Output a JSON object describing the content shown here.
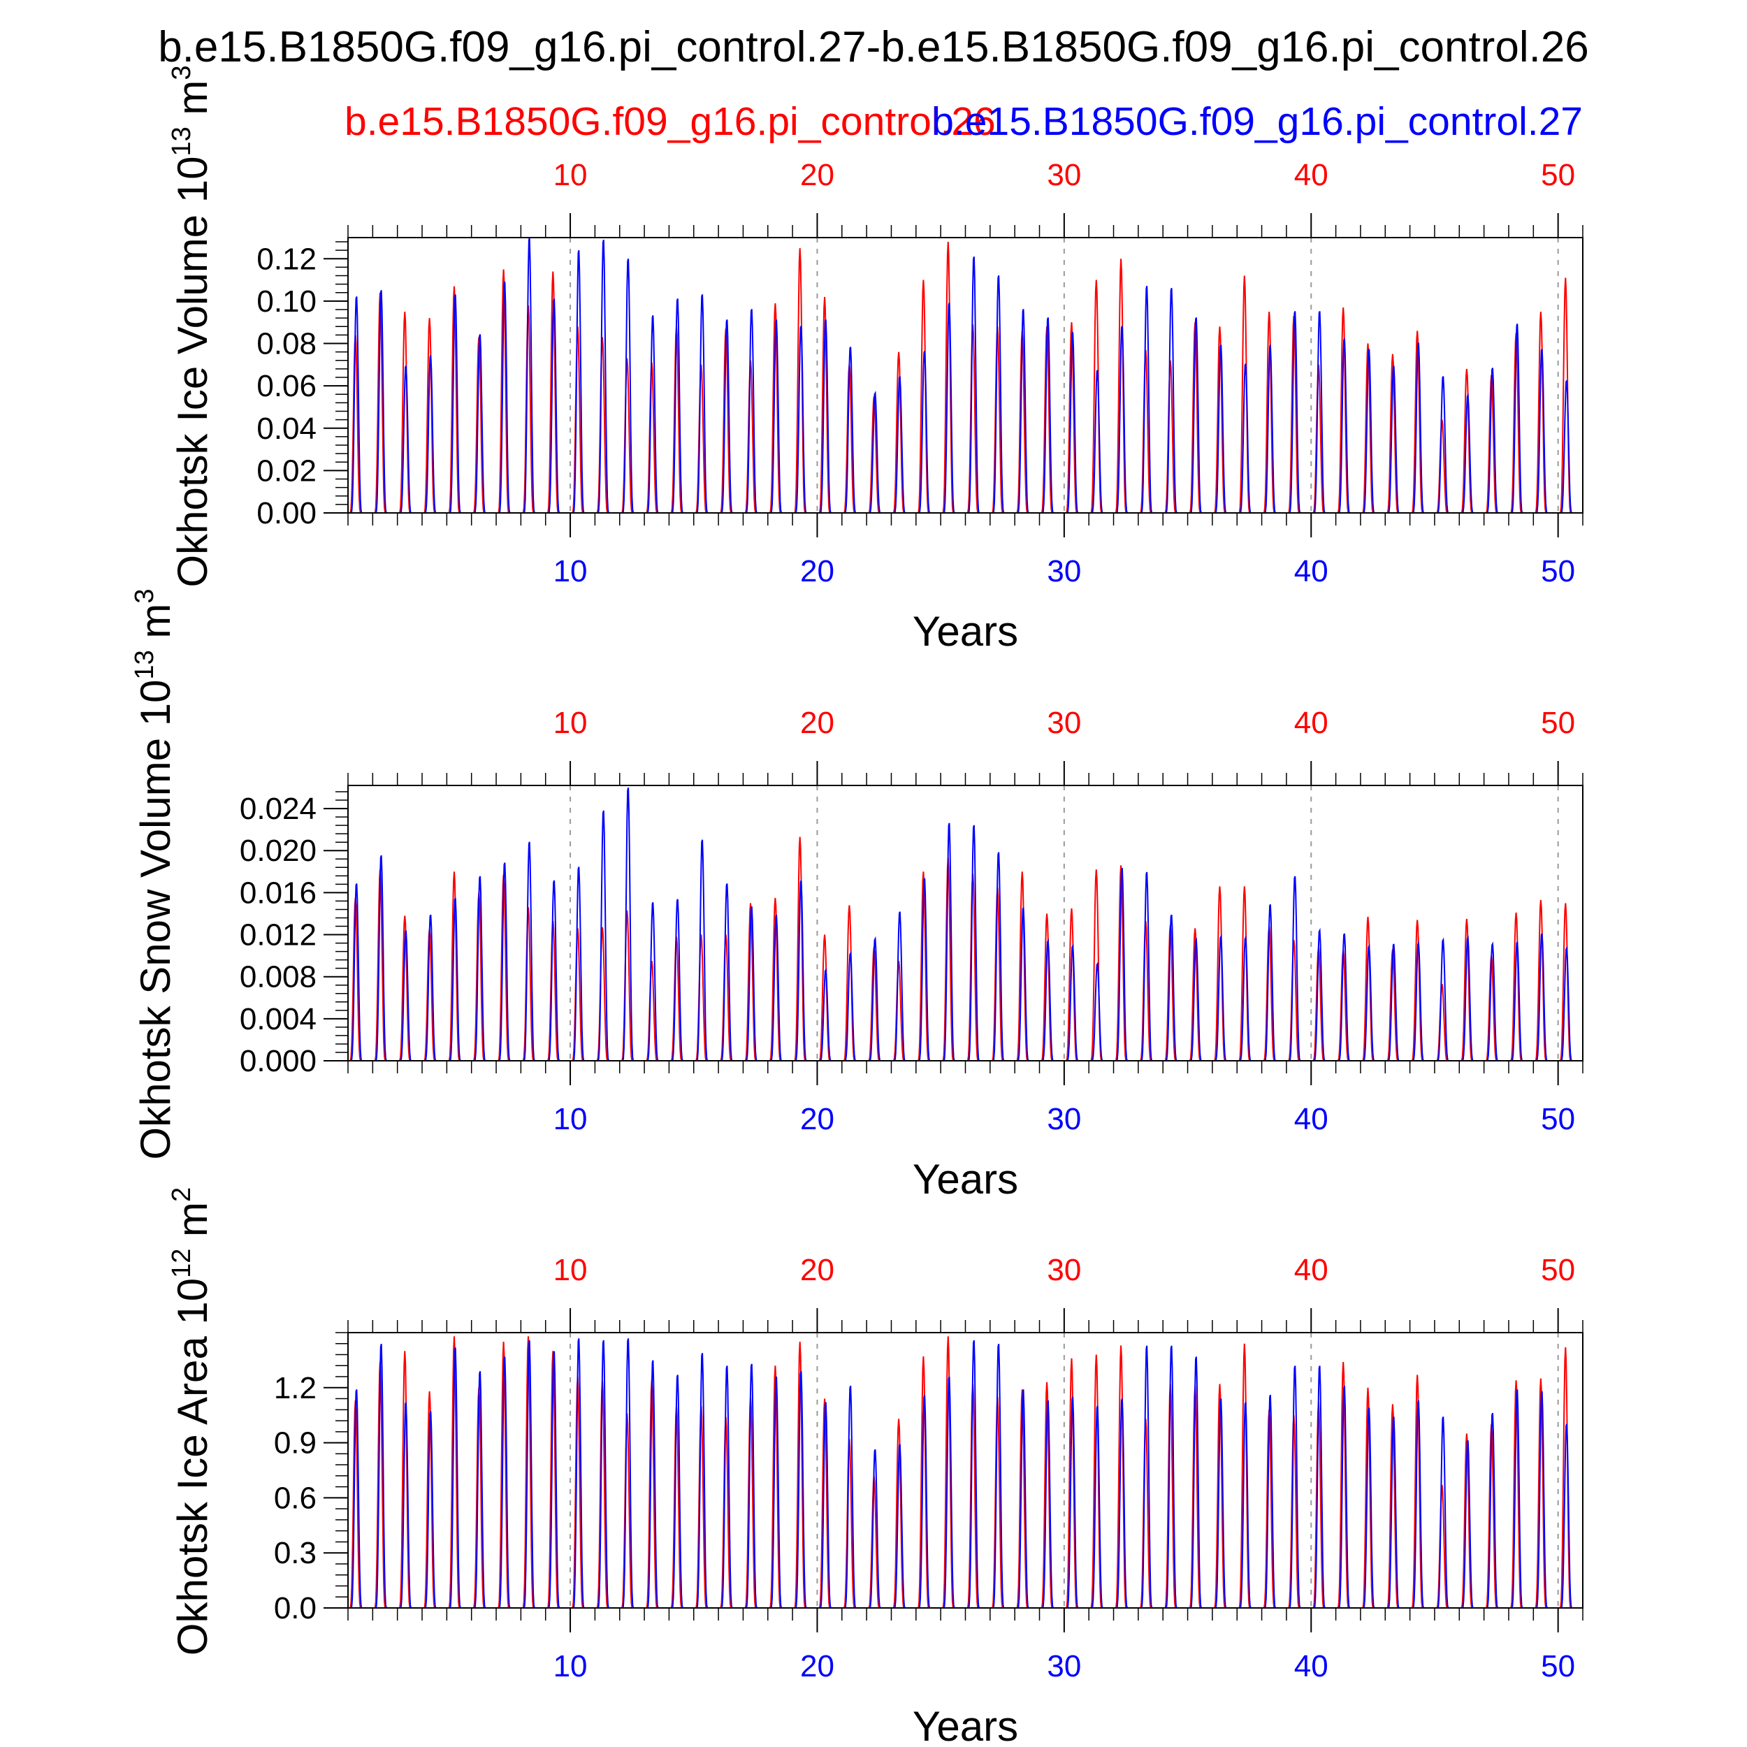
{
  "figure": {
    "title": "b.e15.B1850G.f09_g16.pi_control.27-b.e15.B1850G.f09_g16.pi_control.26",
    "legend_red": "b.e15.B1850G.f09_g16.pi_control.26",
    "legend_blue": "b.e15.B1850G.f09_g16.pi_control.27",
    "series_colors": {
      "red": "#ff0000",
      "blue": "#0000ff"
    }
  },
  "chart_data": [
    {
      "type": "line",
      "ylabel": "Okhotsk Ice Volume 10",
      "ylabel_exp": "13",
      "ylabel_unit": " m",
      "ylabel_unit_exp": "3",
      "xlabel": "Years",
      "xlim": [
        1,
        51
      ],
      "ylim": [
        0,
        0.13
      ],
      "yticks": [
        0,
        0.02,
        0.04,
        0.06,
        0.08,
        0.1,
        0.12
      ],
      "ytick_labels": [
        "0.00",
        "0.02",
        "0.04",
        "0.06",
        "0.08",
        "0.10",
        "0.12"
      ],
      "xticks": [
        10,
        20,
        30,
        40,
        50
      ],
      "xtick_labels": [
        "10",
        "20",
        "30",
        "40",
        "50"
      ],
      "peak_years": [
        1,
        2,
        3,
        4,
        5,
        6,
        7,
        8,
        9,
        10,
        11,
        12,
        13,
        14,
        15,
        16,
        17,
        18,
        19,
        20,
        21,
        22,
        23,
        24,
        25,
        26,
        27,
        28,
        29,
        30,
        31,
        32,
        33,
        34,
        35,
        36,
        37,
        38,
        39,
        40,
        41,
        42,
        43,
        44,
        45,
        46,
        47,
        48,
        49,
        50
      ],
      "series": [
        {
          "name": "b.e15.B1850G.f09_g16.pi_control.26",
          "color": "red",
          "annual_peaks": [
            0.084,
            0.104,
            0.095,
            0.092,
            0.107,
            0.083,
            0.115,
            0.098,
            0.114,
            0.088,
            0.083,
            0.073,
            0.071,
            0.088,
            0.07,
            0.087,
            0.072,
            0.099,
            0.125,
            0.102,
            0.07,
            0.055,
            0.076,
            0.11,
            0.128,
            0.089,
            0.088,
            0.086,
            0.088,
            0.09,
            0.11,
            0.12,
            0.077,
            0.072,
            0.09,
            0.088,
            0.112,
            0.095,
            0.093,
            0.07,
            0.097,
            0.08,
            0.075,
            0.086,
            0.044,
            0.068,
            0.065,
            0.085,
            0.095,
            0.111
          ]
        },
        {
          "name": "b.e15.B1850G.f09_g16.pi_control.27",
          "color": "blue",
          "annual_peaks": [
            0.103,
            0.106,
            0.07,
            0.075,
            0.104,
            0.085,
            0.11,
            0.131,
            0.102,
            0.125,
            0.13,
            0.121,
            0.094,
            0.102,
            0.104,
            0.092,
            0.097,
            0.092,
            0.089,
            0.092,
            0.079,
            0.057,
            0.065,
            0.077,
            0.1,
            0.122,
            0.113,
            0.097,
            0.093,
            0.086,
            0.068,
            0.089,
            0.108,
            0.107,
            0.093,
            0.08,
            0.071,
            0.08,
            0.096,
            0.096,
            0.083,
            0.078,
            0.07,
            0.081,
            0.065,
            0.056,
            0.069,
            0.09,
            0.078,
            0.063
          ]
        }
      ]
    },
    {
      "type": "line",
      "ylabel": "Okhotsk Snow Volume 10",
      "ylabel_exp": "13",
      "ylabel_unit": " m",
      "ylabel_unit_exp": "3",
      "xlabel": "Years",
      "xlim": [
        1,
        51
      ],
      "ylim": [
        0,
        0.0262
      ],
      "yticks": [
        0,
        0.004,
        0.008,
        0.012,
        0.016,
        0.02,
        0.024
      ],
      "ytick_labels": [
        "0.000",
        "0.004",
        "0.008",
        "0.012",
        "0.016",
        "0.020",
        "0.024"
      ],
      "xticks": [
        10,
        20,
        30,
        40,
        50
      ],
      "xtick_labels": [
        "10",
        "20",
        "30",
        "40",
        "50"
      ],
      "peak_years": [
        1,
        2,
        3,
        4,
        5,
        6,
        7,
        8,
        9,
        10,
        11,
        12,
        13,
        14,
        15,
        16,
        17,
        18,
        19,
        20,
        21,
        22,
        23,
        24,
        25,
        26,
        27,
        28,
        29,
        30,
        31,
        32,
        33,
        34,
        35,
        36,
        37,
        38,
        39,
        40,
        41,
        42,
        43,
        44,
        45,
        46,
        47,
        48,
        49,
        50
      ],
      "series": [
        {
          "name": "b.e15.B1850G.f09_g16.pi_control.26",
          "color": "red",
          "annual_peaks": [
            0.0155,
            0.0182,
            0.0138,
            0.0125,
            0.018,
            0.016,
            0.0177,
            0.0146,
            0.0133,
            0.0126,
            0.0127,
            0.0143,
            0.0095,
            0.0118,
            0.012,
            0.012,
            0.015,
            0.0155,
            0.0213,
            0.012,
            0.0148,
            0.0108,
            0.0095,
            0.018,
            0.0193,
            0.0178,
            0.0165,
            0.018,
            0.014,
            0.0145,
            0.0182,
            0.0186,
            0.0133,
            0.0129,
            0.0126,
            0.0166,
            0.0166,
            0.0128,
            0.0115,
            0.0108,
            0.0105,
            0.0137,
            0.0106,
            0.0134,
            0.0073,
            0.0135,
            0.01,
            0.0141,
            0.0153,
            0.015
          ]
        },
        {
          "name": "b.e15.B1850G.f09_g16.pi_control.27",
          "color": "blue",
          "annual_peaks": [
            0.017,
            0.0197,
            0.0125,
            0.014,
            0.0156,
            0.0177,
            0.019,
            0.021,
            0.0173,
            0.0186,
            0.024,
            0.0262,
            0.0152,
            0.0155,
            0.0212,
            0.017,
            0.0148,
            0.014,
            0.0173,
            0.0087,
            0.0103,
            0.0117,
            0.0143,
            0.0175,
            0.0228,
            0.0226,
            0.02,
            0.0147,
            0.0115,
            0.011,
            0.0093,
            0.0185,
            0.0181,
            0.014,
            0.0116,
            0.0119,
            0.0118,
            0.015,
            0.0177,
            0.0125,
            0.0122,
            0.011,
            0.0112,
            0.0113,
            0.0116,
            0.0118,
            0.0112,
            0.0114,
            0.0122,
            0.0108
          ]
        }
      ]
    },
    {
      "type": "line",
      "ylabel": "Okhotsk Ice Area 10",
      "ylabel_exp": "12",
      "ylabel_unit": " m",
      "ylabel_unit_exp": "2",
      "xlabel": "Years",
      "xlim": [
        1,
        51
      ],
      "ylim": [
        0,
        1.5
      ],
      "yticks": [
        0,
        0.3,
        0.6,
        0.9,
        1.2
      ],
      "ytick_labels": [
        "0.0",
        "0.3",
        "0.6",
        "0.9",
        "1.2"
      ],
      "xticks": [
        10,
        20,
        30,
        40,
        50
      ],
      "xtick_labels": [
        "10",
        "20",
        "30",
        "40",
        "50"
      ],
      "peak_years": [
        1,
        2,
        3,
        4,
        5,
        6,
        7,
        8,
        9,
        10,
        11,
        12,
        13,
        14,
        15,
        16,
        17,
        18,
        19,
        20,
        21,
        22,
        23,
        24,
        25,
        26,
        27,
        28,
        29,
        30,
        31,
        32,
        33,
        34,
        35,
        36,
        37,
        38,
        39,
        40,
        41,
        42,
        43,
        44,
        45,
        46,
        47,
        48,
        49,
        50
      ],
      "series": [
        {
          "name": "b.e15.B1850G.f09_g16.pi_control.26",
          "color": "red",
          "annual_peaks": [
            1.13,
            1.34,
            1.4,
            1.18,
            1.48,
            1.2,
            1.45,
            1.48,
            1.4,
            1.26,
            1.24,
            1.06,
            1.24,
            1.1,
            1.1,
            1.04,
            1.15,
            1.32,
            1.45,
            1.14,
            0.92,
            0.72,
            1.03,
            1.37,
            1.48,
            1.22,
            1.15,
            1.19,
            1.23,
            1.36,
            1.38,
            1.43,
            1.03,
            1.22,
            1.21,
            1.22,
            1.44,
            1.08,
            1.05,
            1.12,
            1.34,
            1.2,
            1.11,
            1.27,
            0.67,
            0.95,
            1.0,
            1.24,
            1.25,
            1.42
          ]
        },
        {
          "name": "b.e15.B1850G.f09_g16.pi_control.27",
          "color": "blue",
          "annual_peaks": [
            1.2,
            1.45,
            1.13,
            1.08,
            1.43,
            1.3,
            1.38,
            1.47,
            1.41,
            1.48,
            1.47,
            1.48,
            1.36,
            1.28,
            1.4,
            1.33,
            1.34,
            1.27,
            1.3,
            1.13,
            1.22,
            0.87,
            0.9,
            1.17,
            1.27,
            1.47,
            1.45,
            1.2,
            1.14,
            1.16,
            1.11,
            1.15,
            1.44,
            1.44,
            1.38,
            1.15,
            1.13,
            1.17,
            1.33,
            1.33,
            1.22,
            1.1,
            1.05,
            1.14,
            1.05,
            0.92,
            1.07,
            1.2,
            1.19,
            1.01
          ]
        }
      ]
    }
  ]
}
